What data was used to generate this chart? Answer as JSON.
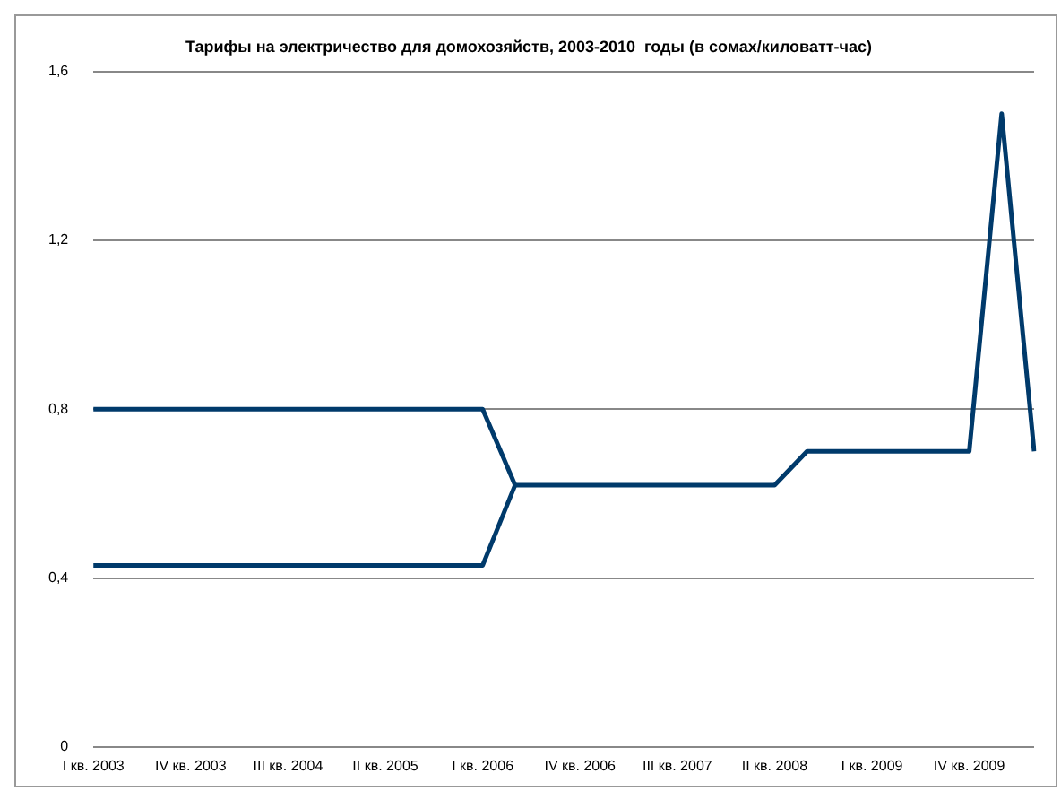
{
  "chart_data": {
    "type": "line",
    "title": "Тарифы на электричество для домохозяйств, 2003-2010  годы (в сомах/киловатт-час)",
    "categories": [
      "I кв. 2003",
      null,
      null,
      "IV кв. 2003",
      null,
      null,
      "III кв. 2004",
      null,
      null,
      "II кв. 2005",
      null,
      null,
      "I кв. 2006",
      null,
      null,
      "IV кв. 2006",
      null,
      null,
      "III кв. 2007",
      null,
      null,
      "II кв. 2008",
      null,
      null,
      "I кв. 2009",
      null,
      null,
      "IV кв. 2009",
      null,
      null
    ],
    "series": [
      {
        "color": "#003a6b",
        "values": [
          0.8,
          0.8,
          0.8,
          0.8,
          0.8,
          0.8,
          0.8,
          0.8,
          0.8,
          0.8,
          0.8,
          0.8,
          0.8,
          0.62,
          0.62,
          0.62,
          0.62,
          0.62,
          0.62,
          0.62,
          0.62,
          0.62,
          0.7,
          0.7,
          0.7,
          0.7,
          0.7,
          0.7,
          1.5,
          0.7
        ]
      },
      {
        "color": "#003a6b",
        "values": [
          0.43,
          0.43,
          0.43,
          0.43,
          0.43,
          0.43,
          0.43,
          0.43,
          0.43,
          0.43,
          0.43,
          0.43,
          0.43,
          0.62,
          null,
          null,
          null,
          null,
          null,
          null,
          null,
          null,
          null,
          null,
          null,
          null,
          null,
          null,
          null,
          null
        ]
      }
    ],
    "ylim": [
      0,
      1.6
    ],
    "yticks": [
      {
        "value": 0,
        "label": "0"
      },
      {
        "value": 0.4,
        "label": "0,4"
      },
      {
        "value": 0.8,
        "label": "0,8"
      },
      {
        "value": 1.2,
        "label": "1,2"
      },
      {
        "value": 1.6,
        "label": "1,6"
      }
    ],
    "grid": "y",
    "legend": false,
    "marker": "none",
    "line_style": "solid"
  }
}
